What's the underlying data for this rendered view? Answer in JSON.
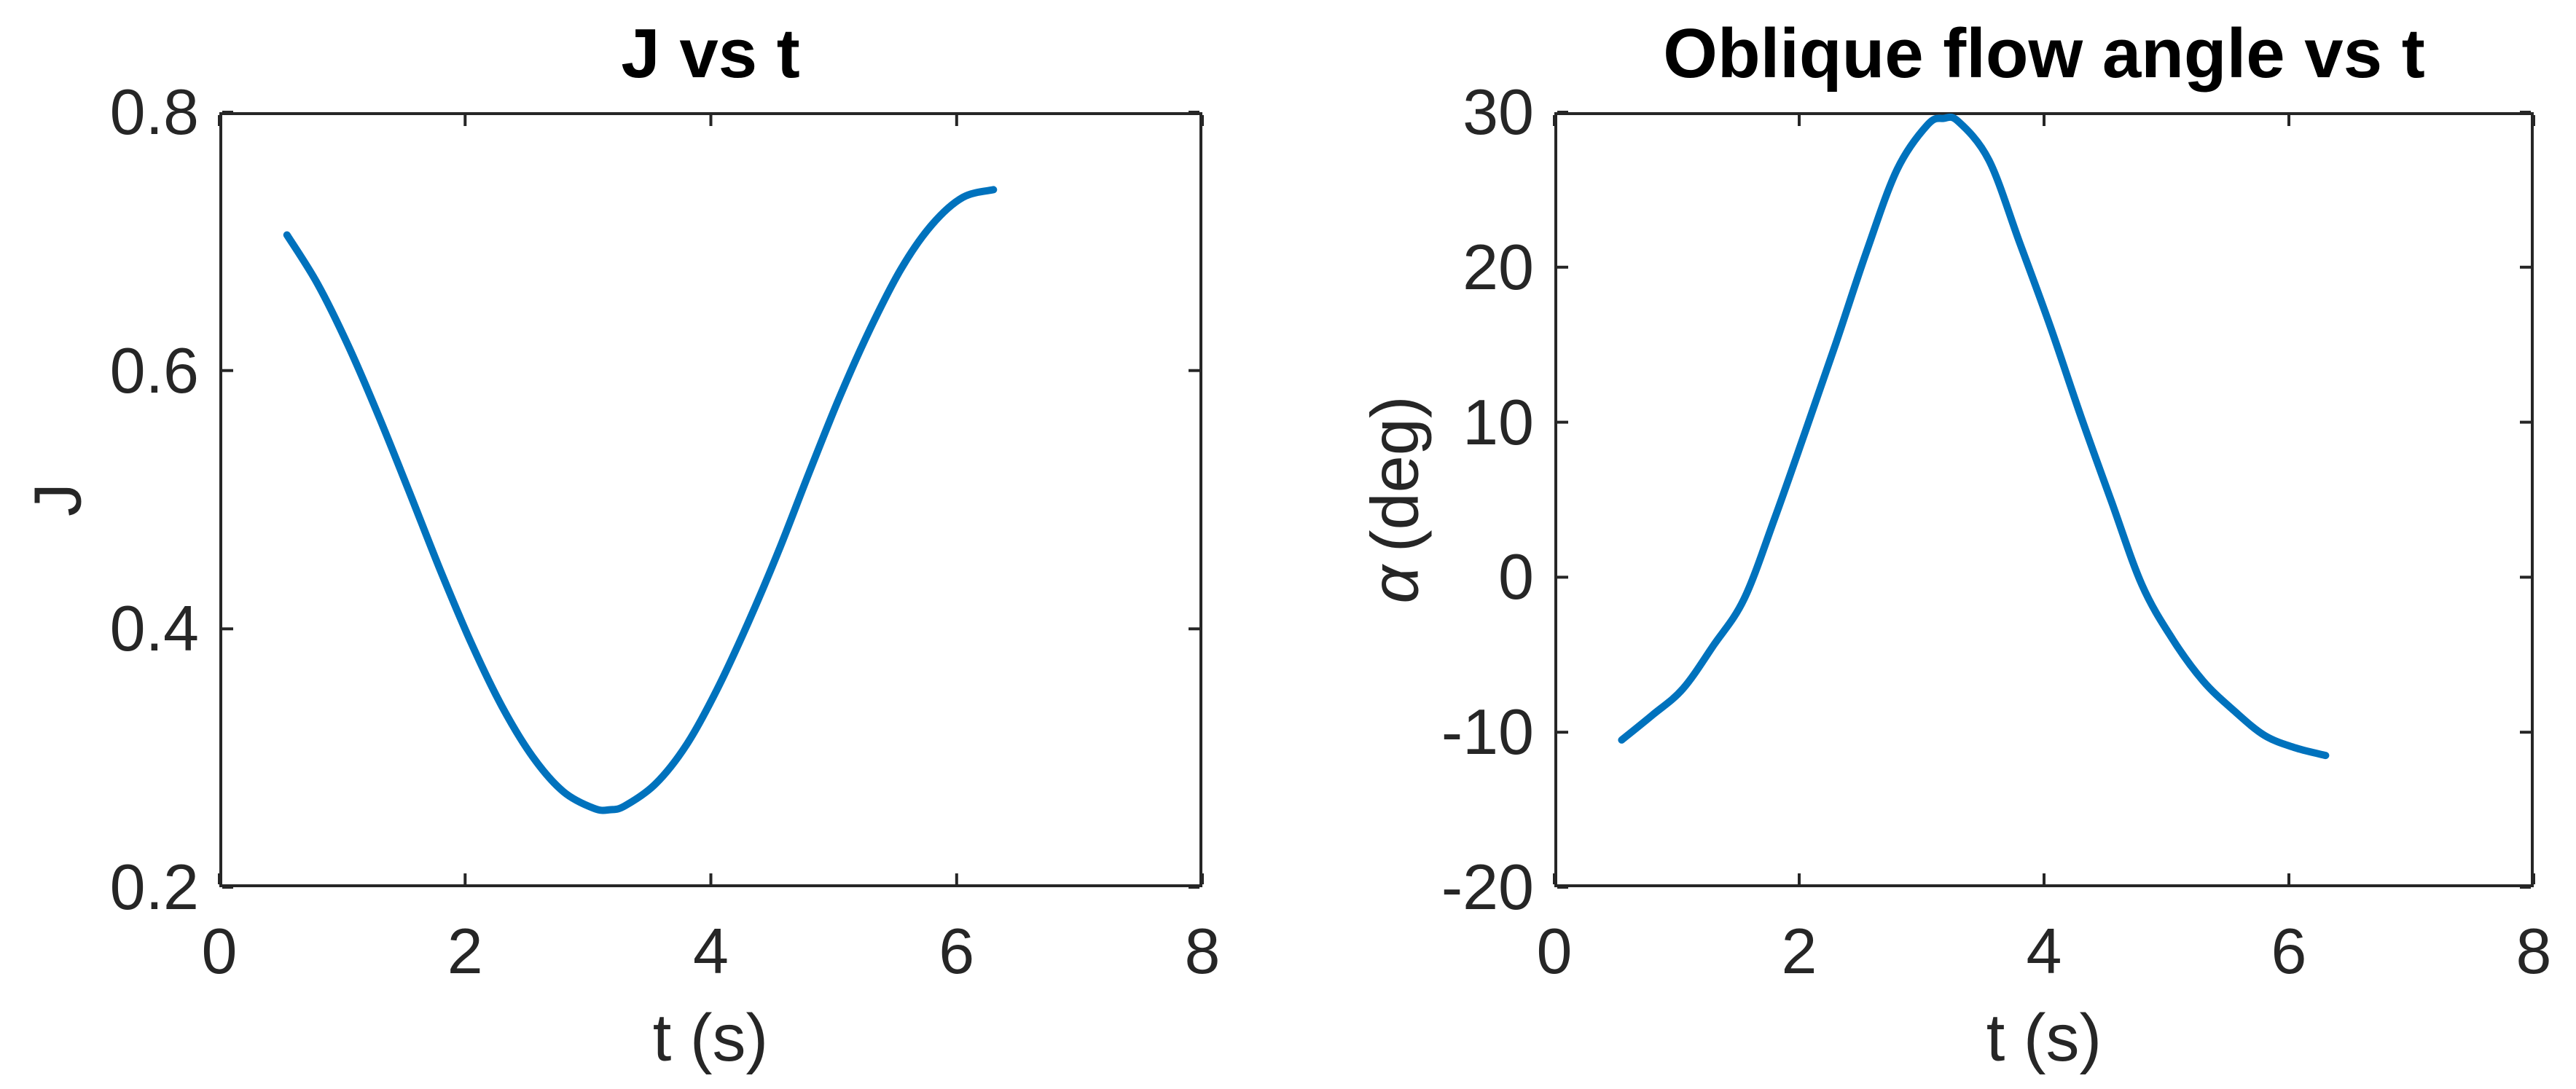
{
  "figure": {
    "background_color": "#ffffff",
    "axis_color": "#262626",
    "title_color": "#000000",
    "line_color": "#0072BD"
  },
  "chart_data": [
    {
      "type": "line",
      "title": "J vs t",
      "xlabel": "t (s)",
      "ylabel": "J",
      "xlim": [
        0,
        8
      ],
      "ylim": [
        0.2,
        0.8
      ],
      "xticks": [
        0,
        2,
        4,
        6,
        8
      ],
      "xtick_labels": [
        "0",
        "2",
        "4",
        "6",
        "8"
      ],
      "yticks": [
        0.2,
        0.4,
        0.6,
        0.8
      ],
      "ytick_labels": [
        "0.2",
        "0.4",
        "0.6",
        "0.8"
      ],
      "grid": false,
      "legend": null,
      "line_color": "#0072BD",
      "x": [
        0.55,
        0.8,
        1.05,
        1.3,
        1.55,
        1.8,
        2.05,
        2.3,
        2.55,
        2.8,
        3.05,
        3.18,
        3.3,
        3.55,
        3.8,
        4.05,
        4.3,
        4.55,
        4.8,
        5.05,
        5.3,
        5.55,
        5.8,
        6.05,
        6.3
      ],
      "y": [
        0.705,
        0.667,
        0.619,
        0.564,
        0.505,
        0.445,
        0.389,
        0.34,
        0.301,
        0.274,
        0.261,
        0.26,
        0.263,
        0.28,
        0.31,
        0.353,
        0.404,
        0.46,
        0.521,
        0.58,
        0.633,
        0.679,
        0.713,
        0.734,
        0.74
      ]
    },
    {
      "type": "line",
      "title": "Oblique flow angle vs t",
      "xlabel": "t (s)",
      "ylabel": "α (deg)",
      "ylabel_symbol": "α",
      "ylabel_unit": "(deg)",
      "xlim": [
        0,
        8
      ],
      "ylim": [
        -20,
        30
      ],
      "xticks": [
        0,
        2,
        4,
        6,
        8
      ],
      "xtick_labels": [
        "0",
        "2",
        "4",
        "6",
        "8"
      ],
      "yticks": [
        -20,
        -10,
        0,
        10,
        20,
        30
      ],
      "ytick_labels": [
        "-20",
        "-10",
        "0",
        "10",
        "20",
        "30"
      ],
      "grid": false,
      "legend": null,
      "line_color": "#0072BD",
      "x": [
        0.55,
        0.8,
        1.05,
        1.3,
        1.55,
        1.8,
        2.05,
        2.3,
        2.55,
        2.8,
        3.05,
        3.18,
        3.3,
        3.55,
        3.8,
        4.05,
        4.3,
        4.55,
        4.8,
        5.05,
        5.3,
        5.55,
        5.8,
        6.05,
        6.3
      ],
      "y": [
        -10.5,
        -8.9,
        -7.2,
        -4.4,
        -1.4,
        3.8,
        9.4,
        15.1,
        21.0,
        26.3,
        29.2,
        29.6,
        29.4,
        26.9,
        21.6,
        16.2,
        10.4,
        4.9,
        -0.5,
        -4.0,
        -6.7,
        -8.6,
        -10.2,
        -11.0,
        -11.5
      ]
    }
  ]
}
